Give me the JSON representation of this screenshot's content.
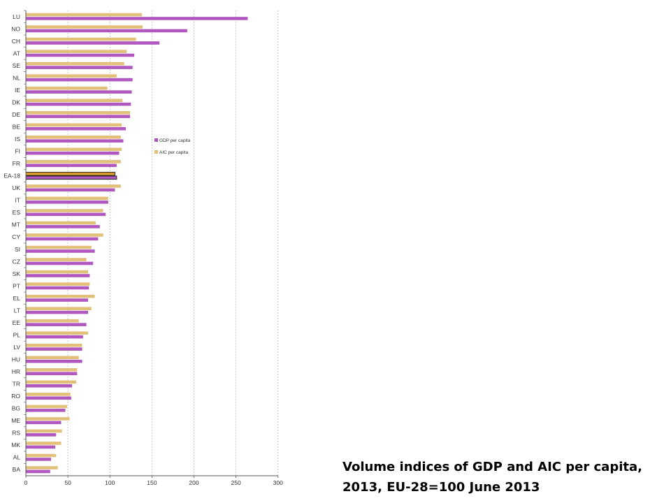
{
  "colors": {
    "gdp": "#b058c0",
    "aic": "#e3c07a",
    "highlight_aic": "#d9a030",
    "grid": "#b8b8b8",
    "axis": "#555555"
  },
  "caption": {
    "line1": "Volume indices of GDP and AIC per capita,",
    "line2": "2013, EU-28=100 June 2013"
  },
  "chart_data": {
    "type": "bar",
    "orientation": "horizontal",
    "categories": [
      "LU",
      "NO",
      "CH",
      "AT",
      "SE",
      "NL",
      "IE",
      "DK",
      "DE",
      "BE",
      "IS",
      "FI",
      "FR",
      "EA-18",
      "UK",
      "IT",
      "ES",
      "MT",
      "CY",
      "SI",
      "CZ",
      "SK",
      "PT",
      "EL",
      "LT",
      "EE",
      "PL",
      "LV",
      "HU",
      "HR",
      "TR",
      "RO",
      "BG",
      "ME",
      "RS",
      "MK",
      "AL",
      "BA"
    ],
    "series": [
      {
        "name": "AIC per capita",
        "color": "#e3c07a",
        "values": [
          138,
          139,
          131,
          120,
          117,
          108,
          97,
          115,
          124,
          114,
          113,
          114,
          113,
          106,
          113,
          98,
          92,
          83,
          92,
          78,
          72,
          74,
          76,
          82,
          78,
          63,
          74,
          67,
          63,
          61,
          60,
          53,
          49,
          52,
          43,
          42,
          36,
          38
        ]
      },
      {
        "name": "GDP per capita",
        "color": "#b058c0",
        "values": [
          264,
          192,
          159,
          129,
          127,
          127,
          126,
          125,
          124,
          119,
          116,
          111,
          108,
          108,
          106,
          98,
          95,
          88,
          86,
          82,
          80,
          76,
          75,
          74,
          74,
          72,
          68,
          67,
          67,
          61,
          55,
          54,
          47,
          42,
          36,
          35,
          30,
          29
        ]
      }
    ],
    "highlighted_category": "EA-18",
    "xlim": [
      0,
      300
    ],
    "x_ticks": [
      0,
      50,
      100,
      150,
      200,
      250,
      300
    ],
    "grid": "vertical dashed",
    "legend": {
      "placement": "middle",
      "entries": [
        "GDP per capita",
        "AIC per capita"
      ]
    },
    "title": "",
    "xlabel": "",
    "ylabel": ""
  }
}
